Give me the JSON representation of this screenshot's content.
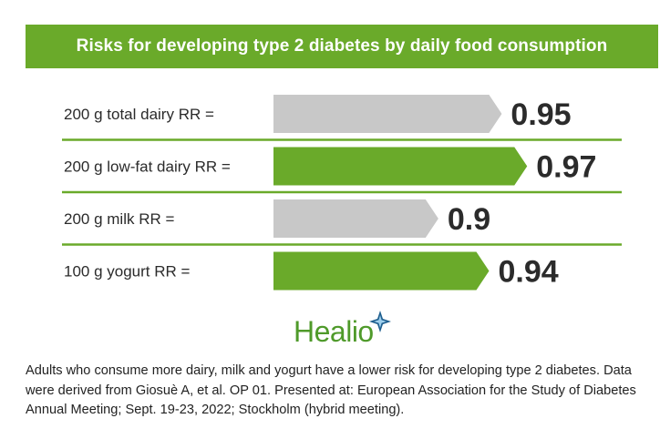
{
  "chart_data": {
    "type": "bar",
    "orientation": "horizontal",
    "title": "Risks for developing type 2 diabetes by daily food consumption",
    "categories": [
      "200 g total dairy RR =",
      "200 g low-fat dairy RR =",
      "200 g milk RR =",
      "100 g yogurt RR ="
    ],
    "values": [
      0.95,
      0.97,
      0.9,
      0.94
    ],
    "value_labels": [
      "0.95",
      "0.97",
      "0.9",
      "0.94"
    ],
    "bar_colors": [
      "#c8c8c8",
      "#6aaa2a",
      "#c8c8c8",
      "#6aaa2a"
    ],
    "xlim": [
      0.77,
      1.0
    ]
  },
  "branding": {
    "logo_text": "Healio",
    "logo_color": "#4f9a2a",
    "accent_color": "#6aaa2a",
    "star_color": "#1f5f8f"
  },
  "caption": "Adults who consume more dairy, milk and yogurt have a lower risk for developing type 2 diabetes. Data were derived from Giosuè A, et al. OP 01. Presented at: European Association for the Study of Diabetes Annual Meeting; Sept. 19-23, 2022; Stockholm (hybrid meeting)."
}
